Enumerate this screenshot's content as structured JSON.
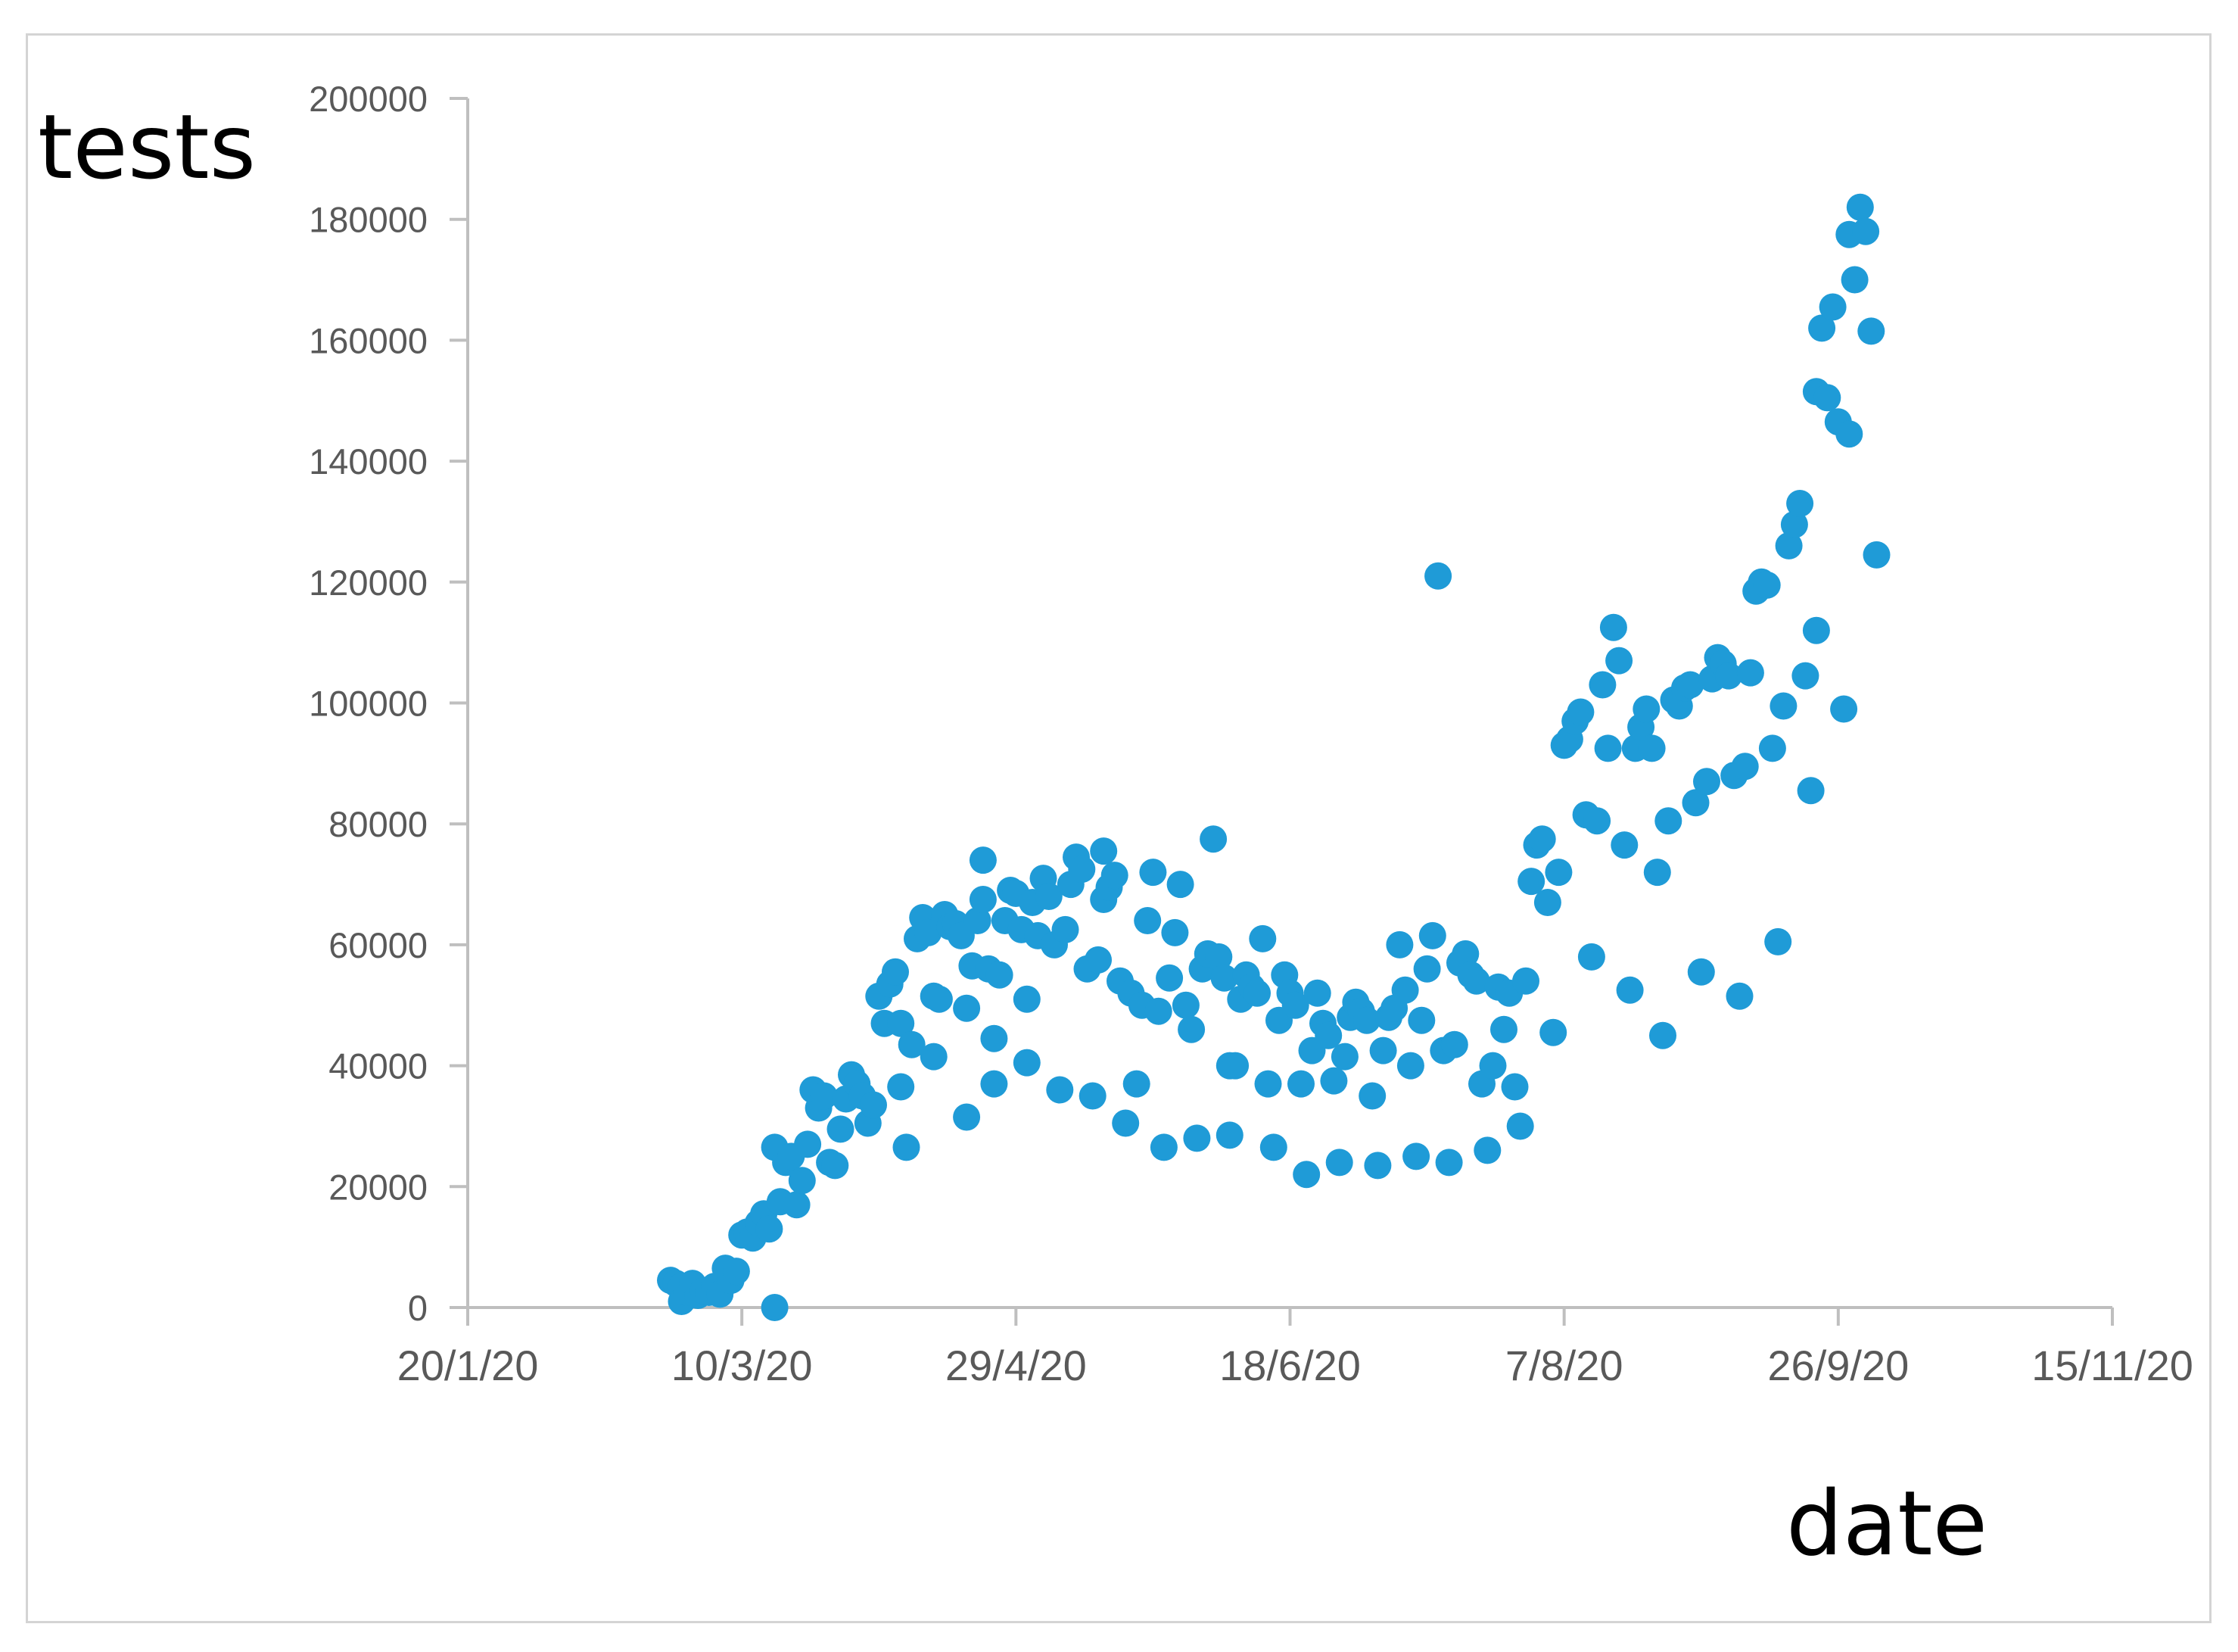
{
  "chart_data": {
    "type": "scatter",
    "ylabel": "tests",
    "xlabel": "date",
    "y_ticks": [
      "0",
      "20000",
      "40000",
      "60000",
      "80000",
      "100000",
      "120000",
      "140000",
      "160000",
      "180000",
      "200000"
    ],
    "x_ticks": [
      "20/1/20",
      "10/3/20",
      "29/4/20",
      "18/6/20",
      "7/8/20",
      "26/9/20",
      "15/11/20"
    ],
    "ylim": [
      0,
      200000
    ],
    "xlim": [
      "2020-01-20",
      "2020-11-15"
    ],
    "grid": false,
    "legend": "none",
    "marker_color": "#1f9bd7",
    "points": [
      [
        "2020-02-26",
        4500
      ],
      [
        "2020-02-27",
        4000
      ],
      [
        "2020-02-28",
        3500
      ],
      [
        "2020-02-28",
        1000
      ],
      [
        "2020-02-29",
        2500
      ],
      [
        "2020-03-01",
        4000
      ],
      [
        "2020-03-02",
        2000
      ],
      [
        "2020-03-03",
        2800
      ],
      [
        "2020-03-04",
        2500
      ],
      [
        "2020-03-05",
        3500
      ],
      [
        "2020-03-06",
        2200
      ],
      [
        "2020-03-07",
        6500
      ],
      [
        "2020-03-08",
        4500
      ],
      [
        "2020-03-09",
        6000
      ],
      [
        "2020-03-10",
        12000
      ],
      [
        "2020-03-11",
        12500
      ],
      [
        "2020-03-12",
        11500
      ],
      [
        "2020-03-13",
        14000
      ],
      [
        "2020-03-14",
        15500
      ],
      [
        "2020-03-15",
        13000
      ],
      [
        "2020-03-16",
        26500
      ],
      [
        "2020-03-16",
        0
      ],
      [
        "2020-03-17",
        17500
      ],
      [
        "2020-03-18",
        24000
      ],
      [
        "2020-03-19",
        25000
      ],
      [
        "2020-03-20",
        17000
      ],
      [
        "2020-03-21",
        21000
      ],
      [
        "2020-03-22",
        27000
      ],
      [
        "2020-03-23",
        36000
      ],
      [
        "2020-03-24",
        33000
      ],
      [
        "2020-03-25",
        35000
      ],
      [
        "2020-03-26",
        24000
      ],
      [
        "2020-03-27",
        23500
      ],
      [
        "2020-03-28",
        29500
      ],
      [
        "2020-03-29",
        34500
      ],
      [
        "2020-03-30",
        38500
      ],
      [
        "2020-03-31",
        37000
      ],
      [
        "2020-04-01",
        35000
      ],
      [
        "2020-04-02",
        30500
      ],
      [
        "2020-04-03",
        33500
      ],
      [
        "2020-04-04",
        51500
      ],
      [
        "2020-04-05",
        47000
      ],
      [
        "2020-04-06",
        53500
      ],
      [
        "2020-04-07",
        55500
      ],
      [
        "2020-04-08",
        47000
      ],
      [
        "2020-04-08",
        36500
      ],
      [
        "2020-04-09",
        26500
      ],
      [
        "2020-04-10",
        43500
      ],
      [
        "2020-04-11",
        61000
      ],
      [
        "2020-04-12",
        64500
      ],
      [
        "2020-04-13",
        62000
      ],
      [
        "2020-04-14",
        51500
      ],
      [
        "2020-04-14",
        41500
      ],
      [
        "2020-04-15",
        51000
      ],
      [
        "2020-04-16",
        65000
      ],
      [
        "2020-04-17",
        63000
      ],
      [
        "2020-04-18",
        63500
      ],
      [
        "2020-04-19",
        61500
      ],
      [
        "2020-04-20",
        49500
      ],
      [
        "2020-04-20",
        31500
      ],
      [
        "2020-04-21",
        56500
      ],
      [
        "2020-04-22",
        64000
      ],
      [
        "2020-04-23",
        67500
      ],
      [
        "2020-04-23",
        74000
      ],
      [
        "2020-04-24",
        56000
      ],
      [
        "2020-04-25",
        44500
      ],
      [
        "2020-04-25",
        37000
      ],
      [
        "2020-04-26",
        55000
      ],
      [
        "2020-04-27",
        64000
      ],
      [
        "2020-04-28",
        69000
      ],
      [
        "2020-04-29",
        68500
      ],
      [
        "2020-04-30",
        62500
      ],
      [
        "2020-05-01",
        51000
      ],
      [
        "2020-05-01",
        40500
      ],
      [
        "2020-05-02",
        67000
      ],
      [
        "2020-05-03",
        61500
      ],
      [
        "2020-05-04",
        71000
      ],
      [
        "2020-05-05",
        68000
      ],
      [
        "2020-05-06",
        60000
      ],
      [
        "2020-05-07",
        36000
      ],
      [
        "2020-05-08",
        62500
      ],
      [
        "2020-05-09",
        70000
      ],
      [
        "2020-05-10",
        74500
      ],
      [
        "2020-05-11",
        72500
      ],
      [
        "2020-05-12",
        56000
      ],
      [
        "2020-05-13",
        35000
      ],
      [
        "2020-05-14",
        57500
      ],
      [
        "2020-05-15",
        67500
      ],
      [
        "2020-05-15",
        75500
      ],
      [
        "2020-05-16",
        69500
      ],
      [
        "2020-05-17",
        71500
      ],
      [
        "2020-05-18",
        54000
      ],
      [
        "2020-05-19",
        30500
      ],
      [
        "2020-05-20",
        52000
      ],
      [
        "2020-05-21",
        37000
      ],
      [
        "2020-05-22",
        50000
      ],
      [
        "2020-05-23",
        64000
      ],
      [
        "2020-05-24",
        72000
      ],
      [
        "2020-05-25",
        49000
      ],
      [
        "2020-05-26",
        26500
      ],
      [
        "2020-05-27",
        54500
      ],
      [
        "2020-05-28",
        62000
      ],
      [
        "2020-05-29",
        70000
      ],
      [
        "2020-05-30",
        50000
      ],
      [
        "2020-05-31",
        46000
      ],
      [
        "2020-06-01",
        28000
      ],
      [
        "2020-06-02",
        56000
      ],
      [
        "2020-06-03",
        58500
      ],
      [
        "2020-06-04",
        77500
      ],
      [
        "2020-06-05",
        58000
      ],
      [
        "2020-06-06",
        54500
      ],
      [
        "2020-06-07",
        40000
      ],
      [
        "2020-06-07",
        28500
      ],
      [
        "2020-06-08",
        40000
      ],
      [
        "2020-06-09",
        51000
      ],
      [
        "2020-06-10",
        55000
      ],
      [
        "2020-06-11",
        53000
      ],
      [
        "2020-06-12",
        52000
      ],
      [
        "2020-06-13",
        61000
      ],
      [
        "2020-06-14",
        37000
      ],
      [
        "2020-06-15",
        26500
      ],
      [
        "2020-06-16",
        47500
      ],
      [
        "2020-06-17",
        55000
      ],
      [
        "2020-06-18",
        52000
      ],
      [
        "2020-06-19",
        50000
      ],
      [
        "2020-06-20",
        37000
      ],
      [
        "2020-06-21",
        22000
      ],
      [
        "2020-06-22",
        42500
      ],
      [
        "2020-06-23",
        52000
      ],
      [
        "2020-06-24",
        47000
      ],
      [
        "2020-06-25",
        45000
      ],
      [
        "2020-06-26",
        37500
      ],
      [
        "2020-06-27",
        24000
      ],
      [
        "2020-06-28",
        41500
      ],
      [
        "2020-06-29",
        48000
      ],
      [
        "2020-06-30",
        50500
      ],
      [
        "2020-07-01",
        49000
      ],
      [
        "2020-07-02",
        47500
      ],
      [
        "2020-07-03",
        35000
      ],
      [
        "2020-07-04",
        23500
      ],
      [
        "2020-07-05",
        42500
      ],
      [
        "2020-07-06",
        48000
      ],
      [
        "2020-07-07",
        49500
      ],
      [
        "2020-07-08",
        60000
      ],
      [
        "2020-07-09",
        52500
      ],
      [
        "2020-07-10",
        40000
      ],
      [
        "2020-07-11",
        25000
      ],
      [
        "2020-07-12",
        47500
      ],
      [
        "2020-07-13",
        56000
      ],
      [
        "2020-07-14",
        61500
      ],
      [
        "2020-07-15",
        121000
      ],
      [
        "2020-07-16",
        42500
      ],
      [
        "2020-07-17",
        24000
      ],
      [
        "2020-07-18",
        43500
      ],
      [
        "2020-07-19",
        57000
      ],
      [
        "2020-07-20",
        58500
      ],
      [
        "2020-07-21",
        55000
      ],
      [
        "2020-07-22",
        54000
      ],
      [
        "2020-07-23",
        37000
      ],
      [
        "2020-07-24",
        26000
      ],
      [
        "2020-07-25",
        40000
      ],
      [
        "2020-07-26",
        53000
      ],
      [
        "2020-07-27",
        46000
      ],
      [
        "2020-07-28",
        52000
      ],
      [
        "2020-07-29",
        36500
      ],
      [
        "2020-07-30",
        30000
      ],
      [
        "2020-07-31",
        54000
      ],
      [
        "2020-08-01",
        70500
      ],
      [
        "2020-08-02",
        76500
      ],
      [
        "2020-08-03",
        77500
      ],
      [
        "2020-08-04",
        67000
      ],
      [
        "2020-08-05",
        45500
      ],
      [
        "2020-08-06",
        72000
      ],
      [
        "2020-08-07",
        93000
      ],
      [
        "2020-08-08",
        94000
      ],
      [
        "2020-08-09",
        97000
      ],
      [
        "2020-08-10",
        98500
      ],
      [
        "2020-08-11",
        81500
      ],
      [
        "2020-08-12",
        58000
      ],
      [
        "2020-08-13",
        80500
      ],
      [
        "2020-08-14",
        103000
      ],
      [
        "2020-08-15",
        92500
      ],
      [
        "2020-08-16",
        112500
      ],
      [
        "2020-08-17",
        107000
      ],
      [
        "2020-08-18",
        76500
      ],
      [
        "2020-08-19",
        52500
      ],
      [
        "2020-08-20",
        92500
      ],
      [
        "2020-08-21",
        96000
      ],
      [
        "2020-08-22",
        99000
      ],
      [
        "2020-08-23",
        92500
      ],
      [
        "2020-08-24",
        72000
      ],
      [
        "2020-08-25",
        45000
      ],
      [
        "2020-08-26",
        80500
      ],
      [
        "2020-08-27",
        100500
      ],
      [
        "2020-08-28",
        99500
      ],
      [
        "2020-08-29",
        102500
      ],
      [
        "2020-08-30",
        103000
      ],
      [
        "2020-08-31",
        83500
      ],
      [
        "2020-09-01",
        55500
      ],
      [
        "2020-09-02",
        87000
      ],
      [
        "2020-09-03",
        104000
      ],
      [
        "2020-09-04",
        107500
      ],
      [
        "2020-09-05",
        106500
      ],
      [
        "2020-09-06",
        104500
      ],
      [
        "2020-09-07",
        88000
      ],
      [
        "2020-09-08",
        51500
      ],
      [
        "2020-09-09",
        89500
      ],
      [
        "2020-09-10",
        105000
      ],
      [
        "2020-09-11",
        118500
      ],
      [
        "2020-09-12",
        120000
      ],
      [
        "2020-09-13",
        119500
      ],
      [
        "2020-09-14",
        92500
      ],
      [
        "2020-09-15",
        60500
      ],
      [
        "2020-09-16",
        99500
      ],
      [
        "2020-09-17",
        126000
      ],
      [
        "2020-09-18",
        129500
      ],
      [
        "2020-09-19",
        133000
      ],
      [
        "2020-09-20",
        104500
      ],
      [
        "2020-09-21",
        85500
      ],
      [
        "2020-09-22",
        112000
      ],
      [
        "2020-09-22",
        151500
      ],
      [
        "2020-09-23",
        162000
      ],
      [
        "2020-09-24",
        150500
      ],
      [
        "2020-09-25",
        165500
      ],
      [
        "2020-09-26",
        146500
      ],
      [
        "2020-09-27",
        99000
      ],
      [
        "2020-09-28",
        144500
      ],
      [
        "2020-09-28",
        177500
      ],
      [
        "2020-09-29",
        170000
      ],
      [
        "2020-09-30",
        182000
      ],
      [
        "2020-10-01",
        178000
      ],
      [
        "2020-10-02",
        161500
      ],
      [
        "2020-10-03",
        124500
      ]
    ]
  }
}
